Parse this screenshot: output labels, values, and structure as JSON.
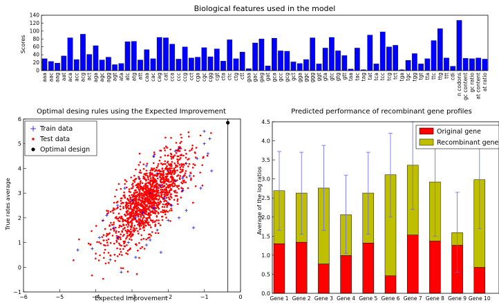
{
  "chart_data": [
    {
      "type": "bar",
      "title": "Biological features used in the model",
      "ylabel": "Scores",
      "xlabel": "",
      "ylim": [
        0,
        140
      ],
      "yticks": [
        0,
        20,
        40,
        60,
        80,
        100,
        120,
        140
      ],
      "bar_color": "#0000ff",
      "categories": [
        "aaa",
        "aac",
        "aag",
        "aat",
        "aca",
        "acc",
        "acg",
        "act",
        "aga",
        "agc",
        "agg",
        "agt",
        "ata",
        "atc",
        "atg",
        "att",
        "caa",
        "cac",
        "cag",
        "cat",
        "cca",
        "ccc",
        "ccg",
        "cct",
        "cga",
        "cgc",
        "cgg",
        "cgt",
        "cta",
        "ctc",
        "ctg",
        "ctt",
        "gaa",
        "gac",
        "gag",
        "gat",
        "gca",
        "gcc",
        "gcg",
        "gct",
        "gga",
        "ggc",
        "ggg",
        "ggt",
        "gta",
        "gtc",
        "gtg",
        "gtt",
        "taa",
        "tac",
        "tag",
        "tat",
        "tca",
        "tcc",
        "tcg",
        "tct",
        "tga",
        "tgc",
        "tgg",
        "tgt",
        "tta",
        "ttc",
        "ttg",
        "ttt",
        "cdi",
        "n codons",
        "gc content",
        "gc ratio",
        "at content",
        "at ratio"
      ],
      "values": [
        30,
        23,
        19,
        37,
        83,
        28,
        92,
        41,
        63,
        27,
        34,
        15,
        18,
        73,
        74,
        27,
        53,
        30,
        84,
        83,
        67,
        29,
        60,
        32,
        34,
        58,
        35,
        55,
        24,
        78,
        30,
        47,
        5,
        70,
        80,
        12,
        82,
        50,
        49,
        22,
        18,
        28,
        83,
        17,
        57,
        84,
        50,
        38,
        4,
        57,
        2,
        90,
        17,
        98,
        60,
        64,
        2,
        26,
        43,
        17,
        30,
        76,
        106,
        32,
        11,
        127,
        31,
        30,
        32,
        29
      ]
    },
    {
      "type": "scatter",
      "title": "Optimal desing rules using the Expected Improvement",
      "xlabel": "Expected Improvement",
      "ylabel": "True rates average",
      "xlim": [
        -6,
        0
      ],
      "ylim": [
        -1,
        6
      ],
      "xticks": [
        -6,
        -5,
        -4,
        -3,
        -2,
        -1,
        0
      ],
      "yticks": [
        -1,
        0,
        1,
        2,
        3,
        4,
        5,
        6
      ],
      "legend_position": "top-left",
      "series": [
        {
          "name": "Train data",
          "marker": "plus",
          "color": "#0000ff",
          "points": [
            [
              -4.5,
              0.7
            ],
            [
              -4.1,
              0.75
            ],
            [
              -3.9,
              1.2
            ],
            [
              -3.6,
              0.3
            ],
            [
              -3.7,
              2.1
            ],
            [
              -3.5,
              1.6
            ],
            [
              -3.4,
              2.5
            ],
            [
              -3.3,
              -0.2
            ],
            [
              -3.2,
              3.2
            ],
            [
              -3.1,
              1.0
            ],
            [
              -3.0,
              2.7
            ],
            [
              -2.9,
              0.4
            ],
            [
              -2.8,
              3.6
            ],
            [
              -2.8,
              1.8
            ],
            [
              -2.7,
              2.2
            ],
            [
              -2.6,
              4.1
            ],
            [
              -2.6,
              0.9
            ],
            [
              -2.5,
              3.0
            ],
            [
              -2.4,
              2.4
            ],
            [
              -2.4,
              4.5
            ],
            [
              -2.3,
              1.5
            ],
            [
              -2.2,
              3.3
            ],
            [
              -2.2,
              0.6
            ],
            [
              -2.1,
              2.8
            ],
            [
              -2.0,
              3.9
            ],
            [
              -2.0,
              1.9
            ],
            [
              -1.9,
              2.5
            ],
            [
              -1.8,
              3.5
            ],
            [
              -1.8,
              4.7
            ],
            [
              -1.7,
              2.0
            ],
            [
              -1.6,
              3.1
            ],
            [
              -1.5,
              4.2
            ],
            [
              -1.5,
              2.3
            ],
            [
              -1.4,
              3.7
            ],
            [
              -1.3,
              1.6
            ],
            [
              -1.2,
              4.4
            ],
            [
              -1.1,
              3.2
            ],
            [
              -1.0,
              5.0
            ],
            [
              -1.0,
              5.5
            ],
            [
              -0.9,
              4.6
            ],
            [
              -0.8,
              3.9
            ],
            [
              -0.85,
              5.2
            ],
            [
              -2.9,
              2.0
            ],
            [
              -3.4,
              1.2
            ],
            [
              -2.5,
              1.1
            ],
            [
              -2.0,
              2.6
            ],
            [
              -1.6,
              3.6
            ],
            [
              -3.8,
              1.9
            ],
            [
              -2.3,
              3.8
            ],
            [
              -1.7,
              4.8
            ]
          ]
        },
        {
          "name": "Test data",
          "marker": "dot",
          "color": "#ff0000",
          "procedural": true
        },
        {
          "name": "Optimal design",
          "marker": "dot-large",
          "color": "#000000",
          "points": [
            [
              -0.35,
              5.85
            ]
          ]
        }
      ],
      "vertical_line_x": -0.35
    },
    {
      "type": "bar",
      "stacked": true,
      "title": "Predicted performance of recombinant gene profiles",
      "xlabel": "",
      "ylabel": "Average of the log ratios",
      "ylim": [
        0,
        4.5
      ],
      "yticks": [
        0,
        0.5,
        1.0,
        1.5,
        2.0,
        2.5,
        3.0,
        3.5,
        4.0,
        4.5
      ],
      "legend_position": "top-right",
      "categories": [
        "Gene 1",
        "Gene 2",
        "Gene 3",
        "Gene 4",
        "Gene 5",
        "Gene 6",
        "Gene 7",
        "Gene 8",
        "Gene 9",
        "Gene 10"
      ],
      "series": [
        {
          "name": "Original gene",
          "color": "#ff0000",
          "values": [
            1.3,
            1.34,
            0.77,
            0.99,
            1.32,
            0.46,
            1.53,
            1.37,
            1.26,
            0.68
          ]
        },
        {
          "name": "Recombinant gene",
          "color": "#bfbf00",
          "values": [
            1.39,
            1.29,
            1.99,
            1.07,
            1.31,
            2.65,
            1.83,
            1.55,
            0.33,
            2.3
          ]
        }
      ],
      "error_bars": {
        "color": "#6666ff",
        "upper": [
          3.72,
          3.7,
          3.88,
          3.1,
          3.7,
          4.2,
          4.5,
          4.3,
          2.65,
          4.25
        ],
        "lower": [
          1.65,
          1.55,
          1.65,
          1.05,
          1.55,
          2.0,
          2.2,
          1.5,
          0.55,
          1.7
        ]
      }
    }
  ]
}
